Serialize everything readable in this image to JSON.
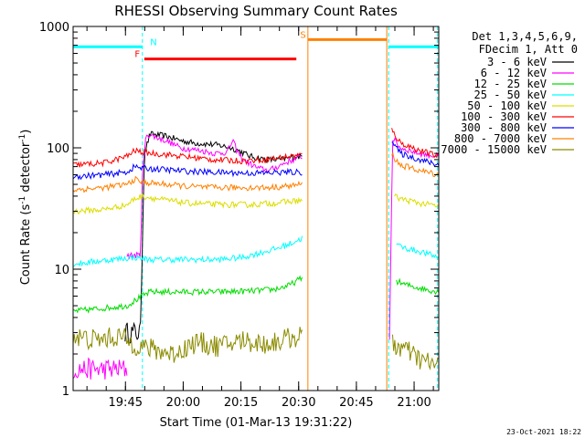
{
  "chart_data": {
    "type": "line",
    "title": "RHESSI Observing Summary Count Rates",
    "xlabel": "Start Time (01-Mar-13 19:31:22)",
    "ylabel_main": "Count Rate (s",
    "ylabel_sup1": "-1",
    "ylabel_mid": " detector",
    "ylabel_sup2": "-1",
    "ylabel_end": ")",
    "y_scale": "log",
    "ylim": [
      1,
      1000
    ],
    "xlim_minutes": [
      0,
      95
    ],
    "y_ticks": [
      {
        "value": 1,
        "label": "1"
      },
      {
        "value": 10,
        "label": "10"
      },
      {
        "value": 100,
        "label": "100"
      },
      {
        "value": 1000,
        "label": "1000"
      }
    ],
    "x_ticks": [
      {
        "minutes": 13.6,
        "label": "19:45"
      },
      {
        "minutes": 28.6,
        "label": "20:00"
      },
      {
        "minutes": 43.6,
        "label": "20:15"
      },
      {
        "minutes": 58.6,
        "label": "20:30"
      },
      {
        "minutes": 73.6,
        "label": "20:45"
      },
      {
        "minutes": 88.6,
        "label": "21:00"
      }
    ],
    "legend_header": [
      "Det 1,3,4,5,6,9,",
      "FDecim 1, Att 0"
    ],
    "legend": [
      {
        "label": "3 - 6 keV",
        "color": "#000000"
      },
      {
        "label": "6 - 12 keV",
        "color": "#ff00ff"
      },
      {
        "label": "12 - 25 keV",
        "color": "#00dd00"
      },
      {
        "label": "25 - 50 keV",
        "color": "#00ffff"
      },
      {
        "label": "50 - 100 keV",
        "color": "#dddd00"
      },
      {
        "label": "100 - 300 keV",
        "color": "#ff0000"
      },
      {
        "label": "300 - 800 keV",
        "color": "#0000ff"
      },
      {
        "label": "800 - 7000 keV",
        "color": "#ff8000"
      },
      {
        "label": "7000 - 15000 keV",
        "color": "#8b8b00"
      }
    ],
    "series": [
      {
        "name": "3 - 6 keV",
        "color": "#000000",
        "segments": [
          {
            "x": [
              13.5,
              16,
              17.5,
              18.5,
              20,
              24,
              28,
              31,
              34,
              38,
              41,
              43,
              46,
              50,
              54,
              58,
              59.5
            ],
            "y": [
              3.0,
              3.0,
              3.0,
              90,
              130,
              125,
              115,
              110,
              108,
              105,
              100,
              95,
              85,
              80,
              80,
              85,
              85
            ]
          }
        ]
      },
      {
        "name": "6 - 12 keV",
        "color": "#ff00ff",
        "segments": [
          {
            "x": [
              0,
              14
            ],
            "y": [
              1.5,
              1.5
            ]
          },
          {
            "x": [
              14,
              15.5,
              17.5,
              18,
              19,
              24,
              28,
              33,
              37,
              40,
              41.5,
              42.5,
              44,
              48,
              51,
              55,
              59.5
            ],
            "y": [
              13,
              13,
              13,
              60,
              130,
              115,
              100,
              95,
              90,
              92,
              115,
              95,
              80,
              68,
              65,
              75,
              85
            ]
          },
          {
            "x": [
              82.2,
              83,
              85,
              90,
              95
            ],
            "y": [
              2.5,
              120,
              100,
              90,
              85
            ]
          }
        ]
      },
      {
        "name": "12 - 25 keV",
        "color": "#00dd00",
        "segments": [
          {
            "x": [
              0,
              14,
              16,
              18,
              20,
              24,
              30,
              38,
              46,
              52,
              56,
              59.5
            ],
            "y": [
              4.5,
              5.0,
              5.5,
              6.0,
              6.5,
              6.5,
              6.5,
              6.5,
              6.6,
              6.8,
              7.3,
              8.5
            ]
          },
          {
            "x": [
              84,
              86,
              90,
              95
            ],
            "y": [
              8.0,
              7.5,
              7.0,
              6.5
            ]
          }
        ]
      },
      {
        "name": "25 - 50 keV",
        "color": "#00ffff",
        "segments": [
          {
            "x": [
              0,
              10,
              16,
              20,
              28,
              38,
              44,
              48,
              52,
              56,
              59.5
            ],
            "y": [
              11,
              12,
              12.5,
              12,
              12,
              12,
              12.5,
              13.5,
              14.5,
              16,
              18
            ]
          },
          {
            "x": [
              84,
              86,
              90,
              95
            ],
            "y": [
              16,
              15,
              14,
              12.5
            ]
          }
        ]
      },
      {
        "name": "50 - 100 keV",
        "color": "#dddd00",
        "segments": [
          {
            "x": [
              0,
              8,
              14,
              16,
              18,
              24,
              30,
              38,
              46,
              52,
              59.5
            ],
            "y": [
              30,
              31,
              34,
              38,
              40,
              37,
              35,
              34,
              34,
              35,
              37
            ]
          },
          {
            "x": [
              83.5,
              85,
              90,
              95
            ],
            "y": [
              40,
              38,
              35,
              33
            ]
          }
        ]
      },
      {
        "name": "100 - 300 keV",
        "color": "#ff0000",
        "segments": [
          {
            "x": [
              0,
              8,
              14,
              16,
              18,
              24,
              30,
              36,
              44,
              50,
              55,
              59.5
            ],
            "y": [
              72,
              75,
              85,
              95,
              92,
              88,
              84,
              80,
              78,
              80,
              84,
              88
            ]
          },
          {
            "x": [
              82.8,
              83.5,
              85,
              90,
              95
            ],
            "y": [
              140,
              130,
              110,
              95,
              85
            ]
          }
        ]
      },
      {
        "name": "300 - 800 keV",
        "color": "#0000ff",
        "segments": [
          {
            "x": [
              0,
              8,
              14,
              16,
              18,
              24,
              30,
              36,
              44,
              50,
              55,
              59.5
            ],
            "y": [
              58,
              60,
              63,
              70,
              68,
              66,
              64,
              63,
              62,
              62,
              63,
              63
            ]
          },
          {
            "x": [
              82.8,
              83.5,
              85,
              90,
              95
            ],
            "y": [
              115,
              105,
              90,
              80,
              72
            ]
          }
        ]
      },
      {
        "name": "800 - 7000 keV",
        "color": "#ff8000",
        "segments": [
          {
            "x": [
              0,
              8,
              14,
              16,
              18,
              24,
              30,
              36,
              44,
              50,
              55,
              59.5
            ],
            "y": [
              45,
              47,
              50,
              55,
              52,
              50,
              48,
              47,
              47,
              47,
              48,
              50
            ]
          },
          {
            "x": [
              82.8,
              83.5,
              85,
              90,
              95
            ],
            "y": [
              90,
              82,
              72,
              65,
              60
            ]
          }
        ]
      },
      {
        "name": "7000 - 15000 keV",
        "color": "#8b8b00",
        "segments": [
          {
            "x": [
              0,
              6,
              12,
              16,
              20,
              26,
              32,
              38,
              44,
              50,
              56,
              59.5
            ],
            "y": [
              2.8,
              2.6,
              2.8,
              2.4,
              2.2,
              2.0,
              2.5,
              2.3,
              2.6,
              2.4,
              2.7,
              2.8
            ]
          },
          {
            "x": [
              83,
              86,
              90,
              95
            ],
            "y": [
              2.4,
              2.2,
              1.8,
              1.6
            ]
          }
        ]
      }
    ],
    "vertical_markers": [
      {
        "minutes": 18.0,
        "color": "#00ffff",
        "dashed": true
      },
      {
        "minutes": 82.0,
        "color": "#00ffff",
        "dashed": true
      },
      {
        "minutes": 94.7,
        "color": "#00ffff",
        "dashed": true
      },
      {
        "minutes": 61.0,
        "color": "#ff8000",
        "dashed": false
      },
      {
        "minutes": 81.5,
        "color": "#ff8000",
        "dashed": false
      }
    ],
    "flag_bars": [
      {
        "label": "N",
        "color": "#00ffff",
        "y_value": 680,
        "segments": [
          [
            0,
            18
          ],
          [
            82,
            95
          ]
        ],
        "label_at": 20.0
      },
      {
        "label": "F",
        "color": "#ff0000",
        "y_value": 540,
        "segments": [
          [
            18.5,
            58.0
          ]
        ],
        "label_at": 16.0
      },
      {
        "label": "S",
        "color": "#ff8000",
        "y_value": 780,
        "segments": [
          [
            61.0,
            81.5
          ]
        ],
        "label_at": 59.0
      }
    ],
    "footer_date": "23-Oct-2021 18:22"
  }
}
